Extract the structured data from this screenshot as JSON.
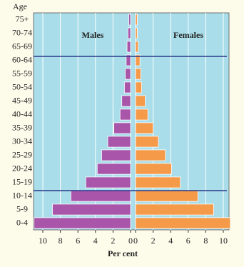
{
  "chart_data": {
    "type": "pyramid",
    "y_label": "Age",
    "x_label": "Per cent",
    "categories": [
      "75+",
      "70-74",
      "65-69",
      "60-64",
      "55-59",
      "50-54",
      "45-49",
      "40-44",
      "35-39",
      "30-34",
      "25-29",
      "20-24",
      "15-19",
      "10-14",
      "5-9",
      "0-4"
    ],
    "series": [
      {
        "name": "Males",
        "color": "#a955aa",
        "values": [
          0.2,
          0.3,
          0.4,
          0.5,
          0.6,
          0.7,
          1.0,
          1.2,
          1.9,
          2.6,
          3.3,
          3.8,
          5.1,
          6.8,
          8.9,
          11.0
        ]
      },
      {
        "name": "Females",
        "color": "#f59a48",
        "values": [
          0.2,
          0.2,
          0.3,
          0.5,
          0.6,
          0.7,
          1.1,
          1.4,
          2.0,
          2.6,
          3.4,
          4.1,
          5.1,
          7.1,
          8.9,
          10.8
        ]
      }
    ],
    "xlim": [
      0,
      11
    ],
    "xticks": [
      0,
      2,
      4,
      6,
      8,
      10
    ],
    "grid": true
  }
}
